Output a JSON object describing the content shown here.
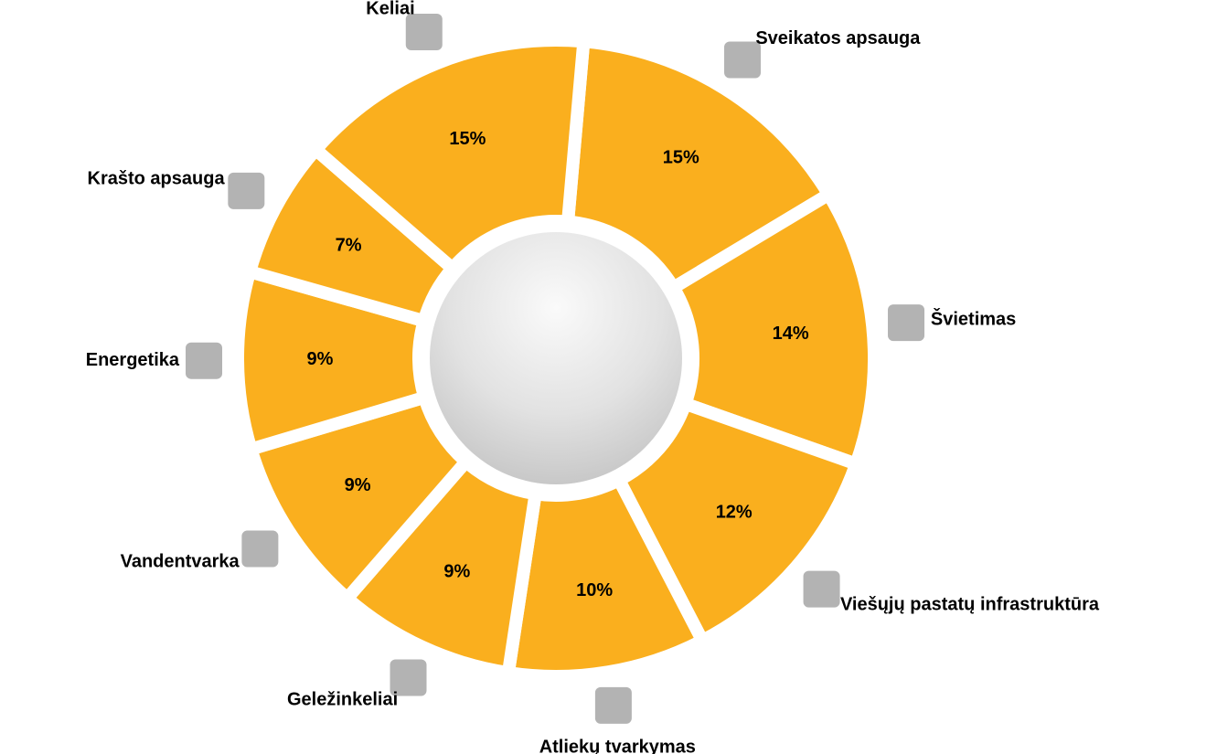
{
  "chart_data": {
    "type": "donut",
    "categories": [
      "Sveikatos apsauga",
      "Švietimas",
      "Viešųjų pastatų infrastruktūra",
      "Atliekų tvarkymas",
      "Geležinkeliai",
      "Vandentvarka",
      "Energetika",
      "Krašto apsauga",
      "Keliai"
    ],
    "values": [
      15,
      14,
      12,
      10,
      9,
      9,
      9,
      7,
      15
    ],
    "value_labels": [
      "15%",
      "14%",
      "12%",
      "10%",
      "9%",
      "9%",
      "9%",
      "7%",
      "15%"
    ],
    "color": "#FAAF1E"
  }
}
